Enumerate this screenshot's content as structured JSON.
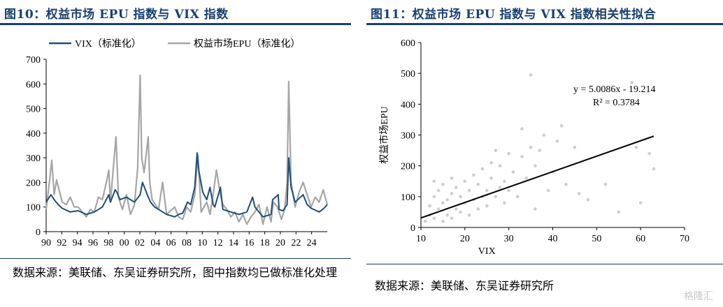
{
  "figures": [
    {
      "title": "图10：权益市场 EPU 指数与 VIX 指数",
      "source": "数据来源：美联储、东吴证券研究所，图中指数均已做标准化处理"
    },
    {
      "title": "图11：权益市场 EPU 指数与 VIX 指数相关性拟合",
      "source": "数据来源：美联储、东吴证券研究所"
    }
  ],
  "watermark": "格隆汇",
  "chart_data": [
    {
      "type": "line",
      "title": "",
      "legend_position": "top",
      "ylim": [
        0,
        700
      ],
      "yticks": [
        0,
        100,
        200,
        300,
        400,
        500,
        600,
        700
      ],
      "xtick_labels": [
        "90",
        "92",
        "94",
        "96",
        "98",
        "00",
        "02",
        "04",
        "06",
        "08",
        "10",
        "12",
        "14",
        "16",
        "18",
        "20",
        "22",
        "24"
      ],
      "xlim": [
        1990,
        2025
      ],
      "series": [
        {
          "name": "VIX（标准化）",
          "color": "#1f4e79",
          "x": [
            1990,
            1990.6,
            1991,
            1991.5,
            1992,
            1993,
            1994,
            1995,
            1996,
            1997,
            1997.8,
            1998,
            1998.6,
            1998.8,
            1999.2,
            2000,
            2001,
            2001.7,
            2002,
            2002.6,
            2003,
            2003.5,
            2004,
            2005,
            2006,
            2006.5,
            2007,
            2007.6,
            2008,
            2008.5,
            2008.8,
            2009,
            2009.5,
            2010,
            2010.4,
            2010.8,
            2011,
            2011.7,
            2012,
            2013,
            2014,
            2015,
            2015.7,
            2016,
            2017,
            2018,
            2018.2,
            2018.9,
            2019,
            2019.5,
            2020,
            2020.2,
            2020.5,
            2021,
            2022,
            2022.5,
            2023,
            2024,
            2024.6,
            2025
          ],
          "y": [
            120,
            150,
            130,
            110,
            95,
            80,
            85,
            70,
            80,
            100,
            150,
            120,
            170,
            160,
            130,
            140,
            120,
            150,
            200,
            150,
            120,
            100,
            90,
            70,
            60,
            70,
            75,
            120,
            110,
            180,
            320,
            250,
            160,
            130,
            180,
            110,
            100,
            180,
            90,
            80,
            70,
            80,
            140,
            100,
            60,
            70,
            130,
            150,
            90,
            85,
            110,
            300,
            180,
            120,
            150,
            110,
            95,
            80,
            95,
            110
          ]
        },
        {
          "name": "权益市场EPU（标准化）",
          "color": "#a6a6a6",
          "x": [
            1990,
            1990.4,
            1990.7,
            1991,
            1991.3,
            1992,
            1992.5,
            1993,
            1993.5,
            1994,
            1995,
            1995.5,
            1996,
            1996.5,
            1997,
            1997.5,
            1997.8,
            1998,
            1998.7,
            1999,
            1999.5,
            2000,
            2000.5,
            2001,
            2001.4,
            2001.7,
            2001.9,
            2002.2,
            2002.7,
            2002.9,
            2003.2,
            2004,
            2004.5,
            2005,
            2006,
            2006.5,
            2007,
            2007.5,
            2008,
            2008.5,
            2008.9,
            2009.3,
            2010,
            2010.4,
            2010.7,
            2011.2,
            2011.7,
            2012,
            2012.5,
            2013,
            2013.5,
            2014,
            2014.5,
            2015,
            2015.5,
            2016,
            2016.5,
            2017,
            2017.5,
            2018,
            2018.3,
            2018.8,
            2019.3,
            2019.7,
            2020,
            2020.2,
            2020.5,
            2021,
            2021.5,
            2022,
            2022.5,
            2023,
            2023.5,
            2024,
            2024.5,
            2025
          ],
          "y": [
            90,
            200,
            290,
            150,
            210,
            120,
            110,
            140,
            100,
            100,
            60,
            90,
            80,
            140,
            130,
            200,
            250,
            120,
            385,
            140,
            90,
            150,
            70,
            110,
            260,
            635,
            300,
            240,
            385,
            200,
            130,
            90,
            200,
            70,
            100,
            60,
            50,
            100,
            80,
            150,
            310,
            80,
            120,
            70,
            130,
            250,
            150,
            110,
            90,
            60,
            80,
            40,
            70,
            30,
            60,
            80,
            110,
            30,
            100,
            40,
            120,
            100,
            50,
            90,
            200,
            610,
            200,
            100,
            160,
            200,
            150,
            100,
            140,
            120,
            170,
            110
          ]
        }
      ]
    },
    {
      "type": "scatter",
      "title": "",
      "xlabel": "VIX",
      "ylabel": "权益市场EPU",
      "xlim": [
        10,
        70
      ],
      "ylim": [
        0,
        600
      ],
      "xticks": [
        10,
        20,
        30,
        40,
        50,
        60,
        70
      ],
      "yticks": [
        0,
        100,
        200,
        300,
        400,
        500,
        600
      ],
      "fit_line": {
        "slope": 5.0086,
        "intercept": -19.214,
        "x": [
          10,
          63
        ],
        "color": "#000000"
      },
      "annotations": [
        "y = 5.0086x - 19.214",
        "R² = 0.3784"
      ],
      "point_color": "#cfcfcf",
      "points": [
        [
          11,
          20
        ],
        [
          12,
          40
        ],
        [
          12,
          70
        ],
        [
          13,
          30
        ],
        [
          13,
          100
        ],
        [
          13,
          150
        ],
        [
          14,
          60
        ],
        [
          14,
          120
        ],
        [
          15,
          20
        ],
        [
          15,
          80
        ],
        [
          15,
          140
        ],
        [
          16,
          40
        ],
        [
          16,
          90
        ],
        [
          17,
          30
        ],
        [
          17,
          110
        ],
        [
          17,
          160
        ],
        [
          18,
          60
        ],
        [
          18,
          130
        ],
        [
          19,
          50
        ],
        [
          19,
          100
        ],
        [
          20,
          80
        ],
        [
          20,
          150
        ],
        [
          21,
          40
        ],
        [
          21,
          120
        ],
        [
          22,
          90
        ],
        [
          22,
          170
        ],
        [
          23,
          60
        ],
        [
          23,
          140
        ],
        [
          24,
          100
        ],
        [
          24,
          190
        ],
        [
          25,
          120
        ],
        [
          25,
          70
        ],
        [
          26,
          160
        ],
        [
          26,
          210
        ],
        [
          27,
          100
        ],
        [
          27,
          250
        ],
        [
          28,
          130
        ],
        [
          28,
          200
        ],
        [
          29,
          150
        ],
        [
          29,
          80
        ],
        [
          30,
          240
        ],
        [
          30,
          120
        ],
        [
          31,
          180
        ],
        [
          32,
          100
        ],
        [
          33,
          230
        ],
        [
          33,
          320
        ],
        [
          34,
          160
        ],
        [
          35,
          260
        ],
        [
          35,
          495
        ],
        [
          36,
          60
        ],
        [
          36,
          200
        ],
        [
          37,
          250
        ],
        [
          38,
          300
        ],
        [
          39,
          120
        ],
        [
          40,
          180
        ],
        [
          41,
          280
        ],
        [
          42,
          330
        ],
        [
          43,
          140
        ],
        [
          45,
          260
        ],
        [
          46,
          110
        ],
        [
          48,
          90
        ],
        [
          52,
          140
        ],
        [
          55,
          50
        ],
        [
          58,
          470
        ],
        [
          59,
          260
        ],
        [
          60,
          80
        ],
        [
          62,
          240
        ],
        [
          63,
          190
        ]
      ]
    }
  ]
}
